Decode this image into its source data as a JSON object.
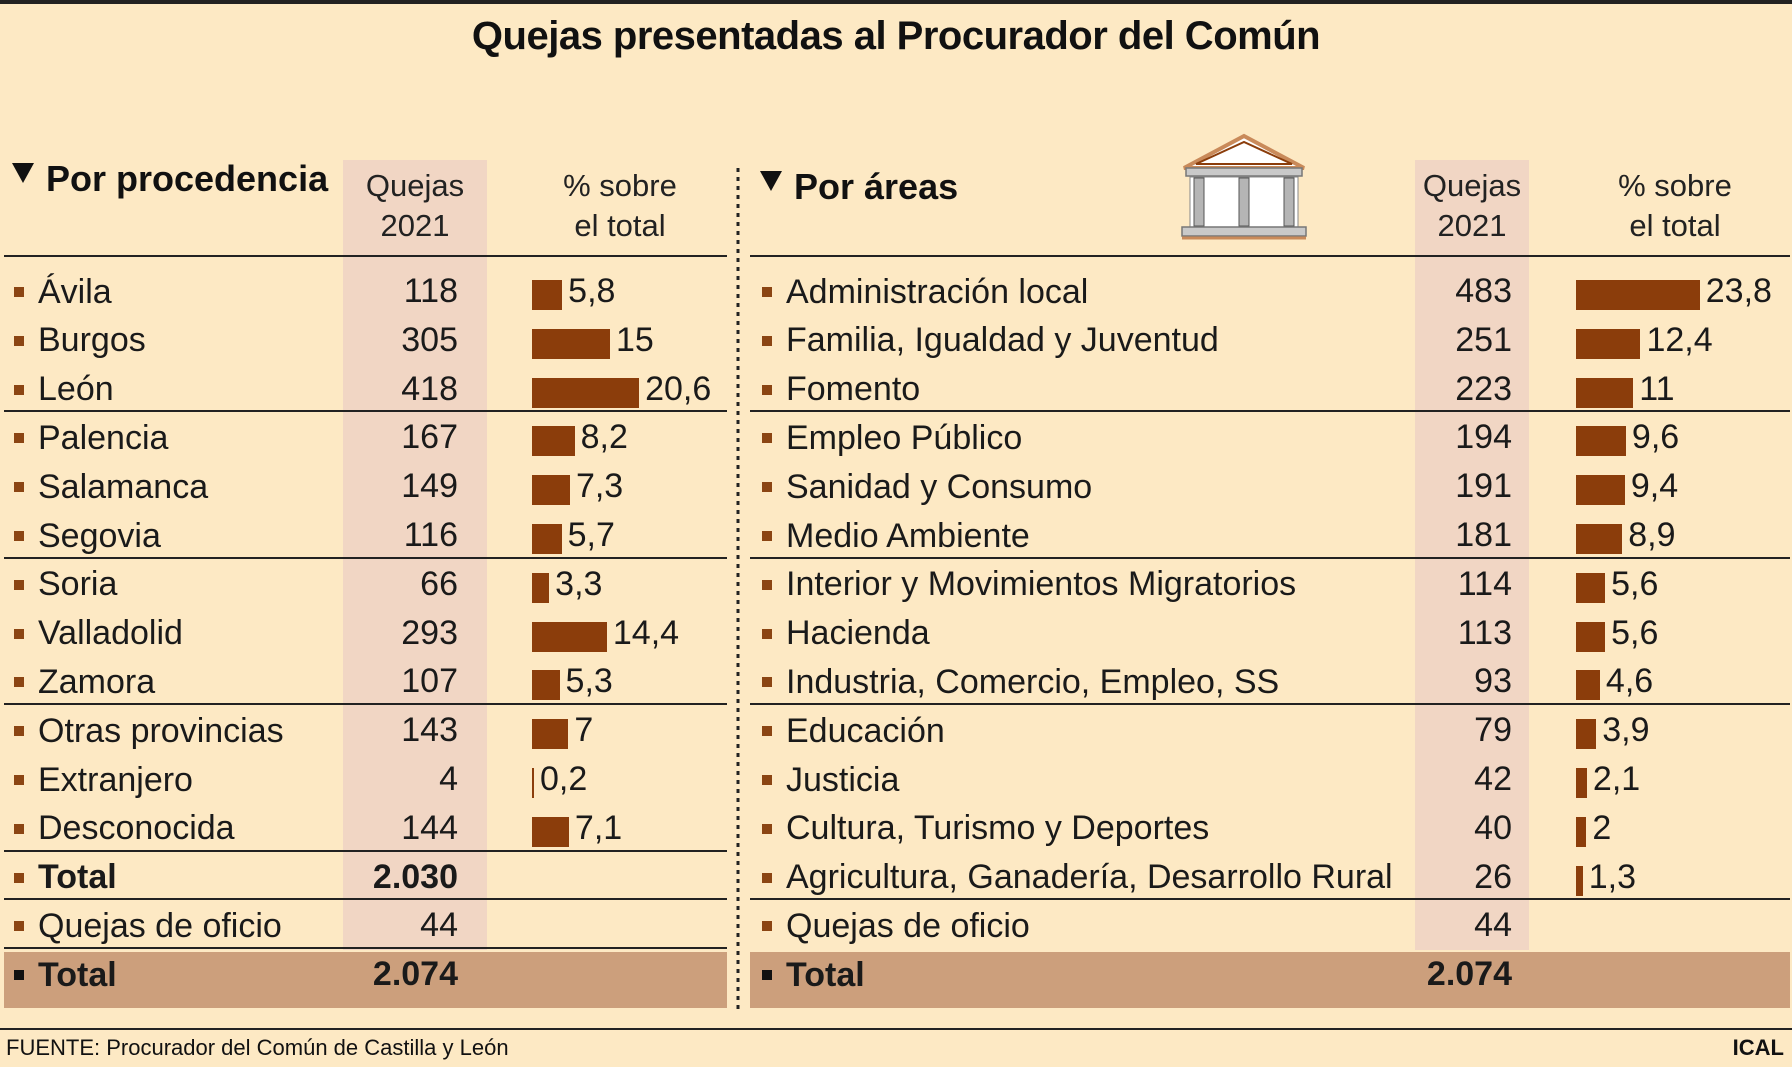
{
  "title": "Quejas presentadas al Procurador del Común",
  "source": "FUENTE: Procurador del Común de Castilla y León",
  "credit": "ICAL",
  "colors": {
    "background": "#fde9c4",
    "quejas_column": "#f1d6c4",
    "bar": "#8b3d0b",
    "total_row": "#cc9f7c"
  },
  "icon": "columned-building-icon",
  "chart_data": [
    {
      "type": "table",
      "title": "Por procedencia",
      "columns": [
        "Quejas 2021",
        "% sobre el total"
      ],
      "column_headers": [
        {
          "line1": "Quejas",
          "line2": "2021"
        },
        {
          "line1": "% sobre",
          "line2": "el total"
        }
      ],
      "rows": [
        {
          "label": "Ávila",
          "quejas": "118",
          "pct": 5.8,
          "pct_label": "5,8"
        },
        {
          "label": "Burgos",
          "quejas": "305",
          "pct": 15,
          "pct_label": "15"
        },
        {
          "label": "León",
          "quejas": "418",
          "pct": 20.6,
          "pct_label": "20,6"
        },
        {
          "label": "Palencia",
          "quejas": "167",
          "pct": 8.2,
          "pct_label": "8,2"
        },
        {
          "label": "Salamanca",
          "quejas": "149",
          "pct": 7.3,
          "pct_label": "7,3"
        },
        {
          "label": "Segovia",
          "quejas": "116",
          "pct": 5.7,
          "pct_label": "5,7"
        },
        {
          "label": "Soria",
          "quejas": "66",
          "pct": 3.3,
          "pct_label": "3,3"
        },
        {
          "label": "Valladolid",
          "quejas": "293",
          "pct": 14.4,
          "pct_label": "14,4"
        },
        {
          "label": "Zamora",
          "quejas": "107",
          "pct": 5.3,
          "pct_label": "5,3"
        },
        {
          "label": "Otras provincias",
          "quejas": "143",
          "pct": 7,
          "pct_label": "7"
        },
        {
          "label": "Extranjero",
          "quejas": "4",
          "pct": 0.2,
          "pct_label": "0,2"
        },
        {
          "label": "Desconocida",
          "quejas": "144",
          "pct": 7.1,
          "pct_label": "7,1"
        },
        {
          "label": "Total",
          "quejas": "2.030",
          "bold": true
        },
        {
          "label": "Quejas de oficio",
          "quejas": "44"
        },
        {
          "label": "Total",
          "quejas": "2.074",
          "bold": true,
          "grand_total": true
        }
      ]
    },
    {
      "type": "table",
      "title": "Por áreas",
      "columns": [
        "Quejas 2021",
        "% sobre el total"
      ],
      "column_headers": [
        {
          "line1": "Quejas",
          "line2": "2021"
        },
        {
          "line1": "% sobre",
          "line2": "el total"
        }
      ],
      "rows": [
        {
          "label": "Administración local",
          "quejas": "483",
          "pct": 23.8,
          "pct_label": "23,8"
        },
        {
          "label": "Familia, Igualdad y Juventud",
          "quejas": "251",
          "pct": 12.4,
          "pct_label": "12,4"
        },
        {
          "label": "Fomento",
          "quejas": "223",
          "pct": 11,
          "pct_label": "11"
        },
        {
          "label": "Empleo Público",
          "quejas": "194",
          "pct": 9.6,
          "pct_label": "9,6"
        },
        {
          "label": "Sanidad y Consumo",
          "quejas": "191",
          "pct": 9.4,
          "pct_label": "9,4"
        },
        {
          "label": "Medio Ambiente",
          "quejas": "181",
          "pct": 8.9,
          "pct_label": "8,9"
        },
        {
          "label": "Interior y Movimientos Migratorios",
          "quejas": "114",
          "pct": 5.6,
          "pct_label": "5,6"
        },
        {
          "label": "Hacienda",
          "quejas": "113",
          "pct": 5.6,
          "pct_label": "5,6"
        },
        {
          "label": "Industria, Comercio, Empleo, SS",
          "quejas": "93",
          "pct": 4.6,
          "pct_label": "4,6"
        },
        {
          "label": "Educación",
          "quejas": "79",
          "pct": 3.9,
          "pct_label": "3,9"
        },
        {
          "label": "Justicia",
          "quejas": "42",
          "pct": 2.1,
          "pct_label": "2,1"
        },
        {
          "label": "Cultura, Turismo y Deportes",
          "quejas": "40",
          "pct": 2,
          "pct_label": "2"
        },
        {
          "label": "Agricultura, Ganadería, Desarrollo Rural",
          "quejas": "26",
          "pct": 1.3,
          "pct_label": "1,3"
        },
        {
          "label": "Quejas de oficio",
          "quejas": "44"
        },
        {
          "label": "Total",
          "quejas": "2.074",
          "bold": true,
          "grand_total": true
        }
      ]
    }
  ]
}
